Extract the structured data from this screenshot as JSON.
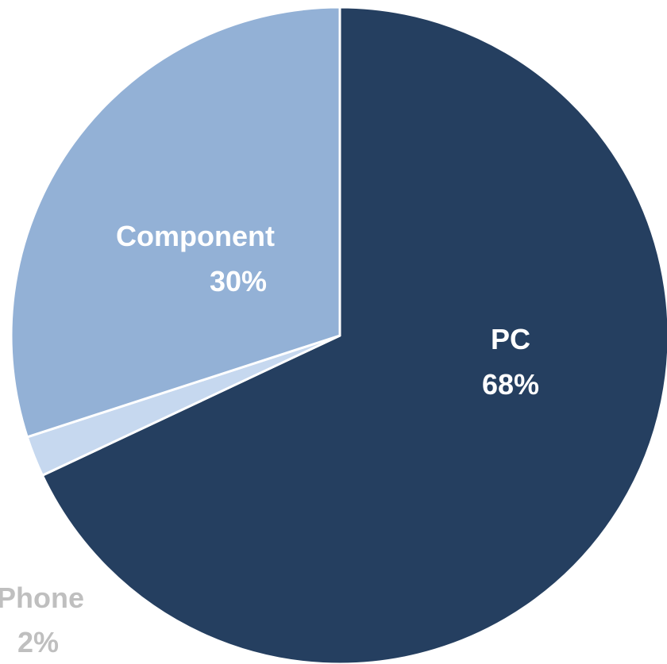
{
  "chart_data": {
    "type": "pie",
    "slices": [
      {
        "name": "PC",
        "value": 68,
        "label": "68%",
        "color": "#253f60",
        "text_color": "#ffffff"
      },
      {
        "name": "Phone",
        "value": 2,
        "label": "2%",
        "color": "#c6d8ef",
        "text_color": "#bfbfbf"
      },
      {
        "name": "Component",
        "value": 30,
        "label": "30%",
        "color": "#93b1d6",
        "text_color": "#ffffff"
      }
    ],
    "start_angle_deg": 0,
    "direction": "clockwise",
    "title": "",
    "legend": "none"
  }
}
